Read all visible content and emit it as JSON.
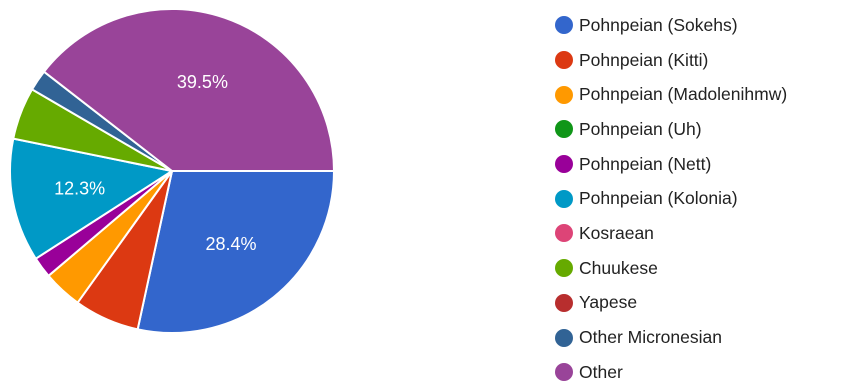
{
  "chart_data": {
    "type": "pie",
    "title": "",
    "legend_position": "right",
    "slices": [
      {
        "name": "Pohnpeian (Sokehs)",
        "value": 28.4,
        "color": "#3366cc",
        "label": "28.4%"
      },
      {
        "name": "Pohnpeian (Kitti)",
        "value": 6.5,
        "color": "#dc3912",
        "label": ""
      },
      {
        "name": "Pohnpeian (Madolenihmw)",
        "value": 3.9,
        "color": "#ff9900",
        "label": ""
      },
      {
        "name": "Pohnpeian (Uh)",
        "value": 0,
        "color": "#109618",
        "label": ""
      },
      {
        "name": "Pohnpeian (Nett)",
        "value": 2.1,
        "color": "#990099",
        "label": ""
      },
      {
        "name": "Pohnpeian (Kolonia)",
        "value": 12.3,
        "color": "#0099c6",
        "label": "12.3%"
      },
      {
        "name": "Kosraean",
        "value": 0,
        "color": "#dd4477",
        "label": ""
      },
      {
        "name": "Chuukese",
        "value": 5.2,
        "color": "#66aa00",
        "label": ""
      },
      {
        "name": "Yapese",
        "value": 0,
        "color": "#b82e2e",
        "label": ""
      },
      {
        "name": "Other Micronesian",
        "value": 2.1,
        "color": "#316395",
        "label": ""
      },
      {
        "name": "Other",
        "value": 39.5,
        "color": "#994499",
        "label": "39.5%"
      }
    ]
  }
}
